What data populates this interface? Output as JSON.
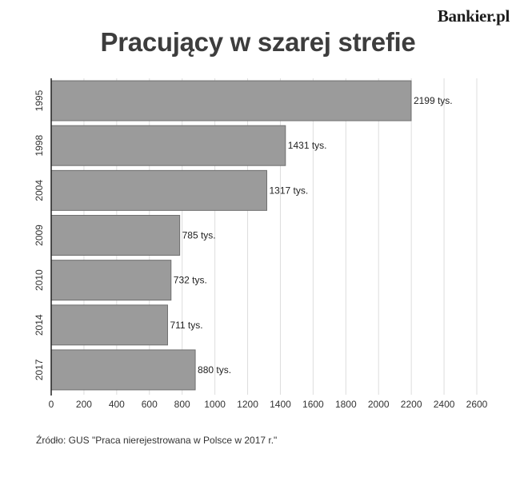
{
  "brand": "Bankier.pl",
  "source": "Źródło: GUS \"Praca nierejestrowana w Polsce w 2017 r.\"",
  "chart_data": {
    "type": "bar",
    "orientation": "horizontal",
    "title": "Pracujący w szarej strefie",
    "categories": [
      "1995",
      "1998",
      "2004",
      "2009",
      "2010",
      "2014",
      "2017"
    ],
    "values": [
      2199,
      1431,
      1317,
      785,
      732,
      711,
      880
    ],
    "value_unit": "tys.",
    "xlim": [
      0,
      2600
    ],
    "xticks": [
      0,
      200,
      400,
      600,
      800,
      1000,
      1200,
      1400,
      1600,
      1800,
      2000,
      2200,
      2400,
      2600
    ],
    "grid": "vertical",
    "colors": {
      "bar": "#9b9b9b",
      "bar_border": "#6f6f6f",
      "grid": "#dddddd",
      "axis": "#222222"
    }
  }
}
